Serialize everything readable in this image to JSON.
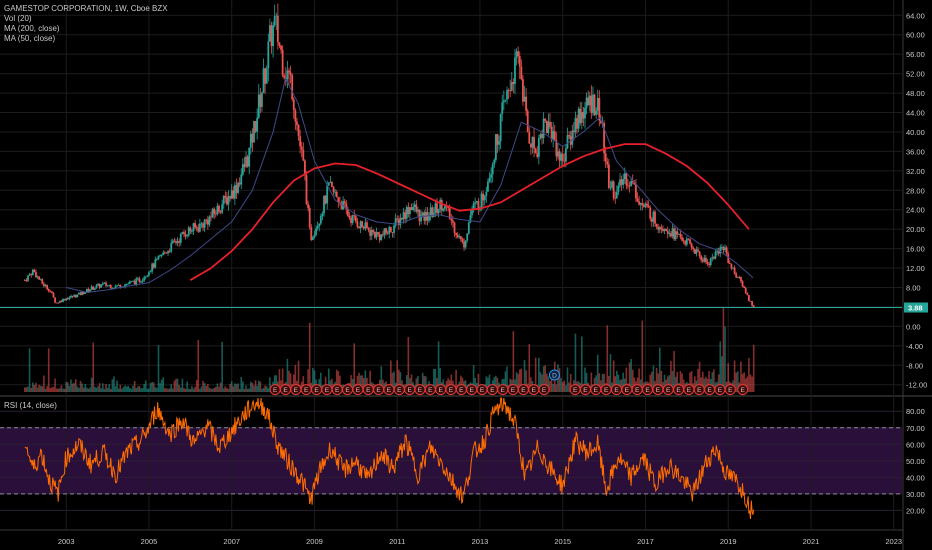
{
  "header": {
    "symbol": "GAMESTOP CORPORATION, 1W, Cboe BZX",
    "indicators": [
      "Vol (20)",
      "MA (200, close)",
      "MA (50, close)"
    ]
  },
  "rsi_panel": {
    "label": "RSI (14, close)"
  },
  "colors": {
    "background": "#000000",
    "candle_up": "#26a69a",
    "candle_down": "#ef5350",
    "ma200": "#e8202a",
    "ma50": "#3f4a8a",
    "rsi_line": "#ff6d00",
    "rsi_band": "#2a0f3a",
    "last_price_line": "#26a69a",
    "axis_text": "#c9c9c9"
  },
  "chart_data": [
    {
      "type": "candlestick",
      "title": "GAMESTOP CORPORATION, 1W, Cboe BZX",
      "x_ticks": [
        "2003",
        "2005",
        "2007",
        "2009",
        "2011",
        "2013",
        "2015",
        "2017",
        "2019",
        "2021",
        "2023"
      ],
      "x_range": [
        2001.4,
        2023.2
      ],
      "y_ticks": [
        "64.00",
        "60.00",
        "56.00",
        "52.00",
        "48.00",
        "44.00",
        "40.00",
        "36.00",
        "32.00",
        "28.00",
        "24.00",
        "20.00",
        "16.00",
        "12.00",
        "8.00",
        "4.00",
        "0.00",
        "-4.00",
        "-8.00",
        "-12.00"
      ],
      "y_range": [
        -13.5,
        65.5
      ],
      "last_price": 3.88,
      "last_price_label": "3.88",
      "price_path": [
        [
          2002.0,
          9.5
        ],
        [
          2002.2,
          11.5
        ],
        [
          2002.4,
          9.0
        ],
        [
          2002.6,
          7.5
        ],
        [
          2002.75,
          4.8
        ],
        [
          2003.0,
          5.8
        ],
        [
          2003.3,
          6.5
        ],
        [
          2003.6,
          7.8
        ],
        [
          2003.9,
          8.6
        ],
        [
          2004.2,
          8.2
        ],
        [
          2004.5,
          8.8
        ],
        [
          2004.8,
          9.6
        ],
        [
          2005.0,
          11.5
        ],
        [
          2005.3,
          14.5
        ],
        [
          2005.6,
          17.0
        ],
        [
          2005.9,
          19.5
        ],
        [
          2006.2,
          20.5
        ],
        [
          2006.5,
          22.5
        ],
        [
          2006.8,
          25.5
        ],
        [
          2007.1,
          28.5
        ],
        [
          2007.4,
          35.0
        ],
        [
          2007.6,
          43.0
        ],
        [
          2007.8,
          52.0
        ],
        [
          2007.95,
          60.0
        ],
        [
          2008.05,
          62.0
        ],
        [
          2008.25,
          54.0
        ],
        [
          2008.45,
          50.0
        ],
        [
          2008.6,
          40.0
        ],
        [
          2008.75,
          32.0
        ],
        [
          2008.9,
          18.0
        ],
        [
          2009.1,
          22.0
        ],
        [
          2009.35,
          28.5
        ],
        [
          2009.6,
          26.0
        ],
        [
          2009.85,
          22.5
        ],
        [
          2010.1,
          21.0
        ],
        [
          2010.35,
          19.5
        ],
        [
          2010.6,
          18.5
        ],
        [
          2010.85,
          20.0
        ],
        [
          2011.1,
          22.5
        ],
        [
          2011.35,
          25.0
        ],
        [
          2011.6,
          22.0
        ],
        [
          2011.85,
          23.5
        ],
        [
          2012.1,
          25.5
        ],
        [
          2012.35,
          21.0
        ],
        [
          2012.6,
          16.5
        ],
        [
          2012.8,
          24.0
        ],
        [
          2013.05,
          26.0
        ],
        [
          2013.3,
          34.0
        ],
        [
          2013.55,
          44.0
        ],
        [
          2013.8,
          52.0
        ],
        [
          2013.95,
          55.0
        ],
        [
          2014.15,
          40.0
        ],
        [
          2014.35,
          36.0
        ],
        [
          2014.55,
          42.0
        ],
        [
          2014.75,
          40.0
        ],
        [
          2014.95,
          34.0
        ],
        [
          2015.15,
          38.0
        ],
        [
          2015.35,
          43.0
        ],
        [
          2015.55,
          45.0
        ],
        [
          2015.75,
          46.5
        ],
        [
          2015.9,
          44.0
        ],
        [
          2016.1,
          30.0
        ],
        [
          2016.3,
          27.0
        ],
        [
          2016.5,
          31.0
        ],
        [
          2016.7,
          29.0
        ],
        [
          2016.9,
          25.0
        ],
        [
          2017.1,
          23.5
        ],
        [
          2017.3,
          21.0
        ],
        [
          2017.5,
          20.5
        ],
        [
          2017.7,
          19.0
        ],
        [
          2017.9,
          18.0
        ],
        [
          2018.1,
          16.5
        ],
        [
          2018.3,
          14.5
        ],
        [
          2018.5,
          13.0
        ],
        [
          2018.7,
          15.0
        ],
        [
          2018.9,
          16.5
        ],
        [
          2019.05,
          12.5
        ],
        [
          2019.2,
          10.5
        ],
        [
          2019.35,
          8.5
        ],
        [
          2019.5,
          5.5
        ],
        [
          2019.62,
          3.9
        ]
      ],
      "ma200": [
        [
          2006.0,
          9.5
        ],
        [
          2006.5,
          12.0
        ],
        [
          2007.0,
          15.5
        ],
        [
          2007.5,
          20.0
        ],
        [
          2008.0,
          25.5
        ],
        [
          2008.5,
          30.0
        ],
        [
          2009.0,
          32.5
        ],
        [
          2009.5,
          33.5
        ],
        [
          2010.0,
          33.2
        ],
        [
          2010.5,
          31.5
        ],
        [
          2011.0,
          29.5
        ],
        [
          2011.5,
          27.5
        ],
        [
          2012.0,
          25.5
        ],
        [
          2012.5,
          23.8
        ],
        [
          2013.0,
          24.2
        ],
        [
          2013.5,
          25.5
        ],
        [
          2014.0,
          28.0
        ],
        [
          2014.5,
          30.5
        ],
        [
          2015.0,
          33.0
        ],
        [
          2015.5,
          35.0
        ],
        [
          2016.0,
          36.5
        ],
        [
          2016.5,
          37.5
        ],
        [
          2017.0,
          37.5
        ],
        [
          2017.5,
          35.5
        ],
        [
          2018.0,
          33.0
        ],
        [
          2018.5,
          29.5
        ],
        [
          2019.0,
          25.0
        ],
        [
          2019.5,
          20.0
        ]
      ],
      "ma50": [
        [
          2003.0,
          8.0
        ],
        [
          2003.5,
          7.0
        ],
        [
          2004.0,
          7.5
        ],
        [
          2004.5,
          8.3
        ],
        [
          2005.0,
          9.0
        ],
        [
          2005.5,
          11.5
        ],
        [
          2006.0,
          14.5
        ],
        [
          2006.5,
          18.0
        ],
        [
          2007.0,
          21.5
        ],
        [
          2007.5,
          28.0
        ],
        [
          2008.0,
          40.0
        ],
        [
          2008.3,
          51.0
        ],
        [
          2008.6,
          46.0
        ],
        [
          2009.0,
          34.0
        ],
        [
          2009.5,
          26.0
        ],
        [
          2010.0,
          23.0
        ],
        [
          2010.5,
          21.5
        ],
        [
          2011.0,
          21.0
        ],
        [
          2011.5,
          22.5
        ],
        [
          2012.0,
          23.0
        ],
        [
          2012.5,
          22.0
        ],
        [
          2013.0,
          21.5
        ],
        [
          2013.5,
          29.0
        ],
        [
          2014.0,
          42.0
        ],
        [
          2014.5,
          40.0
        ],
        [
          2015.0,
          37.0
        ],
        [
          2015.5,
          40.0
        ],
        [
          2015.9,
          43.0
        ],
        [
          2016.3,
          34.0
        ],
        [
          2016.8,
          29.0
        ],
        [
          2017.3,
          24.0
        ],
        [
          2017.8,
          20.0
        ],
        [
          2018.3,
          17.0
        ],
        [
          2018.8,
          15.5
        ],
        [
          2019.2,
          13.0
        ],
        [
          2019.6,
          10.0
        ]
      ],
      "earnings_markers": {
        "label": "E",
        "x": [
          2008.05,
          2008.3,
          2008.55,
          2008.8,
          2009.05,
          2009.3,
          2009.55,
          2009.8,
          2010.05,
          2010.3,
          2010.55,
          2010.8,
          2011.05,
          2011.3,
          2011.55,
          2011.8,
          2012.05,
          2012.3,
          2012.55,
          2012.8,
          2013.05,
          2013.3,
          2013.55,
          2013.8,
          2014.05,
          2014.3,
          2014.55,
          2015.3,
          2015.55,
          2015.8,
          2016.05,
          2016.3,
          2016.55,
          2016.8,
          2017.05,
          2017.3,
          2017.55,
          2017.8,
          2018.05,
          2018.3,
          2018.55,
          2018.8,
          2019.05,
          2019.35
        ]
      },
      "dividend_marker": {
        "label": "D",
        "x": 2014.8
      }
    },
    {
      "type": "line",
      "title": "RSI (14, close)",
      "y_ticks": [
        "80.00",
        "70.00",
        "60.00",
        "50.00",
        "40.00",
        "30.00",
        "20.00"
      ],
      "y_range": [
        13,
        88
      ],
      "overbought": 70,
      "oversold": 30,
      "rsi_path": [
        [
          2002.0,
          62
        ],
        [
          2002.2,
          45
        ],
        [
          2002.4,
          55
        ],
        [
          2002.6,
          38
        ],
        [
          2002.8,
          30
        ],
        [
          2003.0,
          52
        ],
        [
          2003.3,
          60
        ],
        [
          2003.6,
          48
        ],
        [
          2003.9,
          55
        ],
        [
          2004.2,
          42
        ],
        [
          2004.5,
          56
        ],
        [
          2004.8,
          62
        ],
        [
          2005.0,
          70
        ],
        [
          2005.2,
          82
        ],
        [
          2005.5,
          66
        ],
        [
          2005.8,
          75
        ],
        [
          2006.1,
          60
        ],
        [
          2006.4,
          72
        ],
        [
          2006.7,
          58
        ],
        [
          2007.0,
          68
        ],
        [
          2007.3,
          78
        ],
        [
          2007.6,
          86
        ],
        [
          2007.85,
          80
        ],
        [
          2008.1,
          60
        ],
        [
          2008.4,
          48
        ],
        [
          2008.7,
          38
        ],
        [
          2008.9,
          26
        ],
        [
          2009.1,
          42
        ],
        [
          2009.4,
          58
        ],
        [
          2009.7,
          44
        ],
        [
          2010.0,
          50
        ],
        [
          2010.3,
          38
        ],
        [
          2010.6,
          55
        ],
        [
          2010.9,
          45
        ],
        [
          2011.2,
          62
        ],
        [
          2011.5,
          42
        ],
        [
          2011.8,
          58
        ],
        [
          2012.1,
          48
        ],
        [
          2012.4,
          35
        ],
        [
          2012.6,
          28
        ],
        [
          2012.85,
          55
        ],
        [
          2013.1,
          62
        ],
        [
          2013.35,
          80
        ],
        [
          2013.6,
          85
        ],
        [
          2013.85,
          72
        ],
        [
          2014.1,
          40
        ],
        [
          2014.4,
          58
        ],
        [
          2014.7,
          45
        ],
        [
          2015.0,
          35
        ],
        [
          2015.3,
          62
        ],
        [
          2015.6,
          55
        ],
        [
          2015.85,
          60
        ],
        [
          2016.05,
          32
        ],
        [
          2016.35,
          52
        ],
        [
          2016.65,
          40
        ],
        [
          2016.95,
          52
        ],
        [
          2017.25,
          35
        ],
        [
          2017.55,
          48
        ],
        [
          2017.85,
          40
        ],
        [
          2018.15,
          30
        ],
        [
          2018.45,
          48
        ],
        [
          2018.7,
          58
        ],
        [
          2018.95,
          42
        ],
        [
          2019.2,
          38
        ],
        [
          2019.4,
          30
        ],
        [
          2019.55,
          20
        ],
        [
          2019.62,
          25
        ]
      ]
    }
  ]
}
